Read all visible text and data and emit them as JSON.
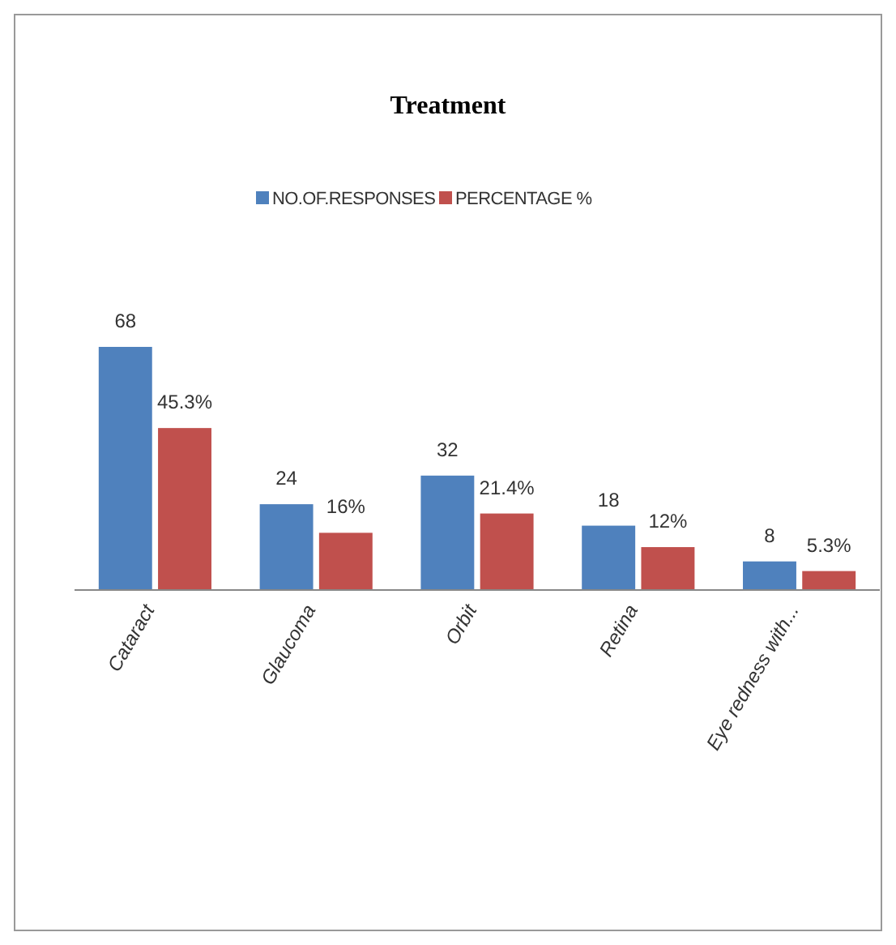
{
  "chart_data": {
    "type": "bar",
    "title": "Treatment",
    "categories": [
      "Cataract",
      "Glaucoma",
      "Orbit",
      "Retina",
      "Eye redness with..."
    ],
    "series": [
      {
        "name": "NO.OF.RESPONSES",
        "color": "#4f81bd",
        "values": [
          68,
          24,
          32,
          18,
          8
        ],
        "value_labels": [
          "68",
          "24",
          "32",
          "18",
          "8"
        ]
      },
      {
        "name": "PERCENTAGE %",
        "color": "#c0504d",
        "values": [
          45.3,
          16,
          21.4,
          12,
          5.3
        ],
        "value_labels": [
          "45.3%",
          "16%",
          "21.4%",
          "12%",
          "5.3%"
        ]
      }
    ],
    "legend": "top",
    "grid": false,
    "tick_labels": "x"
  }
}
